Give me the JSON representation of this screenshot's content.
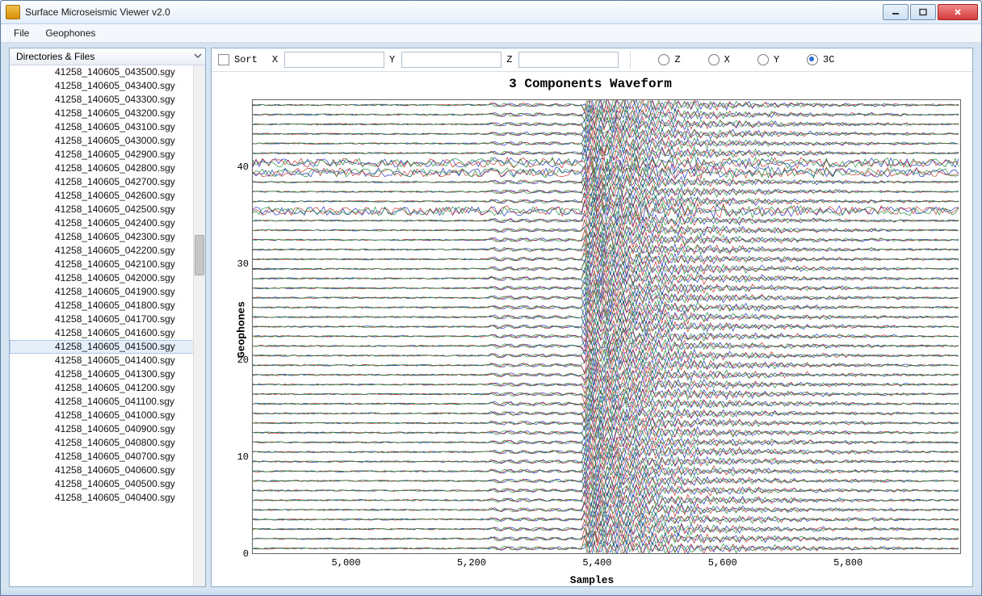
{
  "window": {
    "title": "Surface Microseismic Viewer v2.0"
  },
  "menu": {
    "items": [
      "File",
      "Geophones"
    ]
  },
  "sidebar": {
    "header": "Directories & Files",
    "files": [
      "41258_140605_043500.sgy",
      "41258_140605_043400.sgy",
      "41258_140605_043300.sgy",
      "41258_140605_043200.sgy",
      "41258_140605_043100.sgy",
      "41258_140605_043000.sgy",
      "41258_140605_042900.sgy",
      "41258_140605_042800.sgy",
      "41258_140605_042700.sgy",
      "41258_140605_042600.sgy",
      "41258_140605_042500.sgy",
      "41258_140605_042400.sgy",
      "41258_140605_042300.sgy",
      "41258_140605_042200.sgy",
      "41258_140605_042100.sgy",
      "41258_140605_042000.sgy",
      "41258_140605_041900.sgy",
      "41258_140605_041800.sgy",
      "41258_140605_041700.sgy",
      "41258_140605_041600.sgy",
      "41258_140605_041500.sgy",
      "41258_140605_041400.sgy",
      "41258_140605_041300.sgy",
      "41258_140605_041200.sgy",
      "41258_140605_041100.sgy",
      "41258_140605_041000.sgy",
      "41258_140605_040900.sgy",
      "41258_140605_040800.sgy",
      "41258_140605_040700.sgy",
      "41258_140605_040600.sgy",
      "41258_140605_040500.sgy",
      "41258_140605_040400.sgy"
    ],
    "selected_index": 20
  },
  "toolbar": {
    "sort_label": "Sort",
    "sort_checked": false,
    "fields": {
      "x_label": "X",
      "x_value": "",
      "y_label": "Y",
      "y_value": "",
      "z_label": "Z",
      "z_value": ""
    },
    "radios": [
      {
        "label": "Z",
        "checked": false
      },
      {
        "label": "X",
        "checked": false
      },
      {
        "label": "Y",
        "checked": false
      },
      {
        "label": "3C",
        "checked": true
      }
    ]
  },
  "chart": {
    "title": "3 Components Waveform",
    "xlabel": "Samples",
    "ylabel": "Geophones",
    "type": "multitrace-waveform",
    "n_traces": 47,
    "xlim": [
      4850,
      5980
    ],
    "ylim": [
      0,
      47
    ],
    "xticks": [
      5000,
      5200,
      5400,
      5600,
      5800
    ],
    "yticks": [
      0,
      10,
      20,
      30,
      40
    ],
    "background_color": "#ffffff",
    "axis_color": "#666666",
    "tick_fontsize": 12,
    "label_fontsize": 13,
    "title_fontsize": 16,
    "trace_colors": {
      "z": "#2030c0",
      "x": "#c03028",
      "y": "#209040"
    },
    "line_width": 0.7,
    "event": {
      "p_onset_sample": 5230,
      "s_onset_sample": 5400,
      "coda_end_sample": 5700,
      "main_burst_samples": [
        5380,
        5460
      ]
    },
    "trace_amplitude_scale": 0.45,
    "noisy_traces": [
      36,
      40,
      41
    ],
    "noise_amplitude_scale": 0.9
  }
}
